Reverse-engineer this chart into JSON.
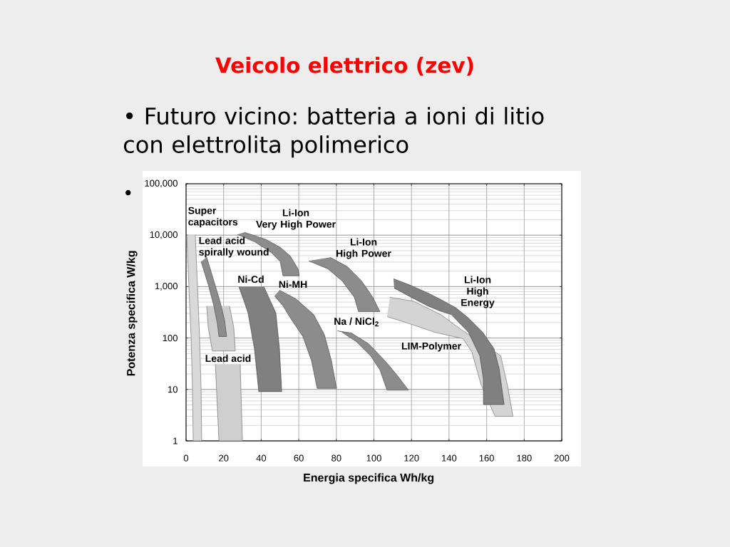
{
  "chart_data": {
    "type": "area",
    "title": "Veicolo elettrico (zev)",
    "subtitle": "• Futuro vicino: batteria a ioni di litio con elettrolita polimerico",
    "xlabel": "Energia specifica Wh/kg",
    "ylabel": "Potenza specifica W/kg",
    "xlim": [
      0,
      200
    ],
    "ylim": [
      1,
      100000
    ],
    "log": "y",
    "grid": true,
    "xticks": [
      0,
      20,
      40,
      60,
      80,
      100,
      120,
      140,
      160,
      180,
      200
    ],
    "yticks": [
      1,
      10,
      100,
      {
        "value": 1000,
        "label": "1,000"
      },
      {
        "value": 10000,
        "label": "10,000"
      },
      {
        "value": 100000,
        "label": "100,000"
      }
    ],
    "series": [
      {
        "color": "#d9d9d9",
        "x": [
          0.4,
          1.5,
          2.7,
          3.4,
          3.8,
          8.3,
          8,
          7.2,
          6.1,
          4.9
        ],
        "values": [
          10000,
          1000,
          100,
          10,
          1,
          1,
          10,
          100,
          1000,
          10000
        ]
      },
      {
        "color": "#cfcfcf",
        "x": [
          11,
          11.8,
          14,
          26.2,
          25.4,
          23.1
        ],
        "values": [
          420,
          160,
          56,
          56,
          160,
          420
        ]
      },
      {
        "color": "#cfcfcf",
        "x": [
          15.6,
          17.5,
          30,
          28.8
        ],
        "values": [
          31,
          1,
          1,
          31
        ]
      },
      {
        "color": "#d4d4d4",
        "x": [
          108.5,
          121,
          136,
          146,
          167.5,
          171,
          174,
          164.5,
          157,
          152.2,
          147.5,
          132.5,
          119,
          107
        ],
        "values": [
          620,
          520,
          280,
          150,
          45,
          12.5,
          3,
          3,
          12.5,
          53,
          97,
          129,
          190,
          261
        ]
      },
      {
        "color": "#8c8c8c",
        "x": [
          8,
          11.8,
          14.8,
          16.7,
          17.5,
          21.6,
          20.5,
          18.2,
          14.8,
          11
        ],
        "values": [
          3060,
          1100,
          420,
          190,
          107,
          107,
          222,
          495,
          1290,
          3710
        ]
      },
      {
        "color": "#8c8c8c",
        "x": [
          31.1,
          42.5,
          50.1,
          55.4,
          59.6,
          60.3,
          51.6,
          50.1,
          45.2,
          36.4,
          27.3
        ],
        "values": [
          11370,
          8250,
          5800,
          3960,
          2220,
          1620,
          1620,
          3060,
          4640,
          7500,
          10330
        ]
      },
      {
        "color": "#808080",
        "x": [
          28.1,
          31.1,
          33,
          36.4,
          38.7,
          50.9,
          49.7,
          47.8,
          45.2,
          41.4
        ],
        "values": [
          1000,
          495,
          306,
          62,
          9.1,
          9.1,
          62,
          306,
          495,
          1000
        ]
      },
      {
        "color": "#8c8c8c",
        "x": [
          49.7,
          58.4,
          67.9,
          73.6,
          77.4,
          80.1,
          69.8,
          66.8,
          62.2,
          55.8,
          51.6,
          47.1
        ],
        "values": [
          853,
          580,
          287,
          117,
          36,
          10.5,
          10.5,
          36,
          107,
          237,
          422,
          660
        ]
      },
      {
        "color": "#8c8c8c",
        "x": [
          76.7,
          85.8,
          93.4,
          99.4,
          103.2,
          91.8,
          89.6,
          83.1,
          75.5,
          65.3
        ],
        "values": [
          3710,
          2450,
          1290,
          620,
          326,
          326,
          620,
          1290,
          2220,
          3160
        ]
      },
      {
        "color": "#8c8c8c",
        "x": [
          80.5,
          88,
          97.2,
          105.9,
          112.3,
          118.4,
          107,
          103.2,
          98.3,
          90.7,
          83.1
        ],
        "values": [
          138,
          125,
          77,
          36,
          19,
          9.7,
          9.7,
          24,
          45,
          85,
          129
        ]
      },
      {
        "color": "#808080",
        "x": [
          110.4,
          118.4,
          128.7,
          136.2,
          143.8,
          150.3,
          157.9,
          163.9,
          166.6,
          169.3,
          158.3,
          158.3,
          156.4,
          150.3,
          141.2,
          135.1,
          128.7,
          119.9,
          110.8
        ],
        "values": [
          1420,
          1100,
          750,
          545,
          383,
          245,
          129,
          62,
          26,
          5.1,
          5.1,
          15.6,
          45,
          129,
          287,
          337,
          422,
          620,
          938
        ]
      }
    ],
    "annotations": [
      "Super capacitors",
      "Li-Ion Very High Power",
      "Lead acid spirally wound",
      "Ni-Cd",
      "Ni-MH",
      "Li-Ion High Power",
      "Na / NiCl$_{2}$",
      "LIM-Polymer",
      "Li-Ion High Energy",
      "Lead acid",
      "•"
    ]
  }
}
